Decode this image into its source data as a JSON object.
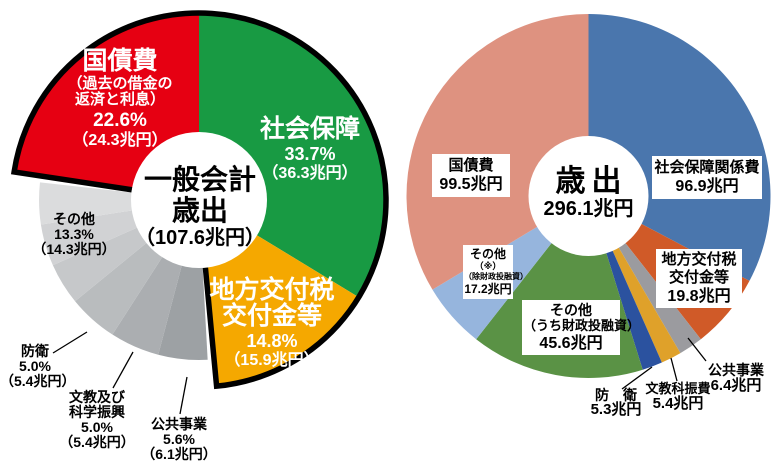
{
  "chart_data": [
    {
      "type": "pie",
      "title": "一般会計歳出",
      "center_label_lines": [
        "一般会計",
        "歳出",
        "（107.6兆円）"
      ],
      "total": {
        "amount_trillion_yen": 107.6,
        "unit": "兆円"
      },
      "legend_position": "on-chart",
      "segments": [
        {
          "key": "social-security",
          "label": "社会保障",
          "percent": 33.7,
          "amount_trillion_yen": 36.3,
          "color": "#189a43",
          "label_lines": [
            "社会保障",
            "33.7%",
            "（36.3兆円）"
          ]
        },
        {
          "key": "local-allocation-tax",
          "label": "地方交付税交付金等",
          "percent": 14.8,
          "amount_trillion_yen": 15.9,
          "color": "#f5a800",
          "label_lines": [
            "地方交付税",
            "交付金等",
            "14.8%",
            "（15.9兆円）"
          ]
        },
        {
          "key": "public-works",
          "label": "公共事業",
          "percent": 5.6,
          "amount_trillion_yen": 6.1,
          "color": "#9da1a4",
          "small": true,
          "label_lines": [
            "公共事業",
            "5.6%",
            "（6.1兆円）"
          ]
        },
        {
          "key": "education-science",
          "label": "文教及び科学振興",
          "percent": 5.0,
          "amount_trillion_yen": 5.4,
          "color": "#abaeb1",
          "small": true,
          "label_lines": [
            "文教及び",
            "科学振興",
            "5.0%",
            "（5.4兆円）"
          ]
        },
        {
          "key": "defense",
          "label": "防衛",
          "percent": 5.0,
          "amount_trillion_yen": 5.4,
          "color": "#b9bcbe",
          "small": true,
          "label_lines": [
            "防衛",
            "5.0%",
            "（5.4兆円）"
          ]
        },
        {
          "key": "others",
          "label": "その他",
          "percent": 13.3,
          "amount_trillion_yen": 14.3,
          "color": "#c6c8ca",
          "small": true,
          "shades": [
            "#c6c8ca",
            "#d1d2d4",
            "#dbdcdd"
          ],
          "label_lines": [
            "その他",
            "13.3%",
            "（14.3兆円）"
          ]
        },
        {
          "key": "national-debt-service",
          "label": "国債費（過去の借金の返済と利息）",
          "percent": 22.6,
          "amount_trillion_yen": 24.3,
          "color": "#e60012",
          "label_lines": [
            "国債費",
            "（過去の借金の",
            "返済と利息）",
            "22.6%",
            "（24.3兆円）"
          ]
        }
      ]
    },
    {
      "type": "donut",
      "title": "歳出",
      "center_label_lines": [
        "歳出",
        "296.1兆円"
      ],
      "total": {
        "amount_trillion_yen": 296.1,
        "unit": "兆円"
      },
      "legend_position": "on-chart",
      "segments": [
        {
          "key": "social-security-related",
          "label": "社会保障関係費",
          "amount_trillion_yen": 96.9,
          "color": "#4a76ad",
          "label_lines": [
            "社会保障関係費",
            "96.9兆円"
          ]
        },
        {
          "key": "local-allocation-tax",
          "label": "地方交付税交付金等",
          "amount_trillion_yen": 19.8,
          "color": "#d05a28",
          "label_lines": [
            "地方交付税",
            "交付金等",
            "19.8兆円"
          ]
        },
        {
          "key": "public-works",
          "label": "公共事業",
          "amount_trillion_yen": 6.4,
          "color": "#9b9b9f",
          "label_lines": [
            "公共事業",
            "6.4兆円"
          ]
        },
        {
          "key": "education-science",
          "label": "文教科振費",
          "amount_trillion_yen": 5.4,
          "color": "#dfa12a",
          "label_lines": [
            "文教科振費",
            "5.4兆円"
          ]
        },
        {
          "key": "defense",
          "label": "防衛",
          "amount_trillion_yen": 5.3,
          "color": "#2b529f",
          "label_lines": [
            "防　衛",
            "5.3兆円"
          ]
        },
        {
          "key": "others-incl-filp",
          "label": "その他（うち財政投融資）",
          "amount_trillion_yen": 45.6,
          "color": "#5a9245",
          "label_lines": [
            "その他",
            "（うち財政投融資）",
            "45.6兆円"
          ]
        },
        {
          "key": "others-excl-filp",
          "label": "その他（※）（除財政投融資）",
          "amount_trillion_yen": 17.2,
          "color": "#96b5dd",
          "label_lines": [
            "その他",
            "（※）",
            "（除財政投融資）",
            "17.2兆円"
          ]
        },
        {
          "key": "national-debt-service",
          "label": "国債費",
          "amount_trillion_yen": 99.5,
          "color": "#de9280",
          "label_lines": [
            "国債費",
            "99.5兆円"
          ]
        }
      ]
    }
  ]
}
